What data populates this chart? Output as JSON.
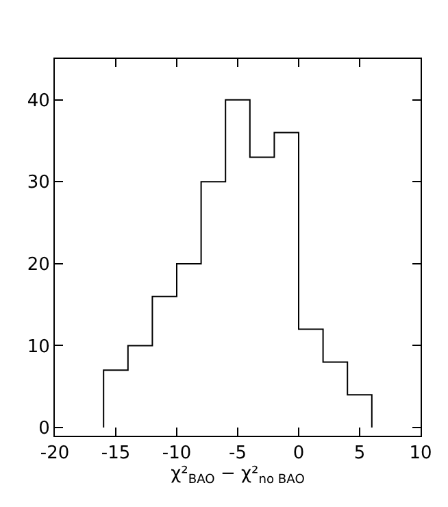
{
  "chart_data": {
    "type": "histogram",
    "xlabel": "χ²$_{BAO}$ − χ²$_{no BAO}$",
    "bins": [
      -16,
      -14,
      -12,
      -10,
      -8,
      -6,
      -4,
      -2,
      0,
      2,
      4,
      6
    ],
    "values": [
      7,
      10,
      16,
      20,
      30,
      40,
      33,
      36,
      12,
      8,
      4
    ],
    "color": "#000000",
    "xlim": [
      -20,
      10
    ],
    "xticks": [
      -20,
      -15,
      -10,
      -5,
      0,
      5,
      10
    ],
    "ylim": [
      -1,
      45
    ],
    "yticks": [
      0,
      10,
      20,
      30,
      40
    ]
  }
}
